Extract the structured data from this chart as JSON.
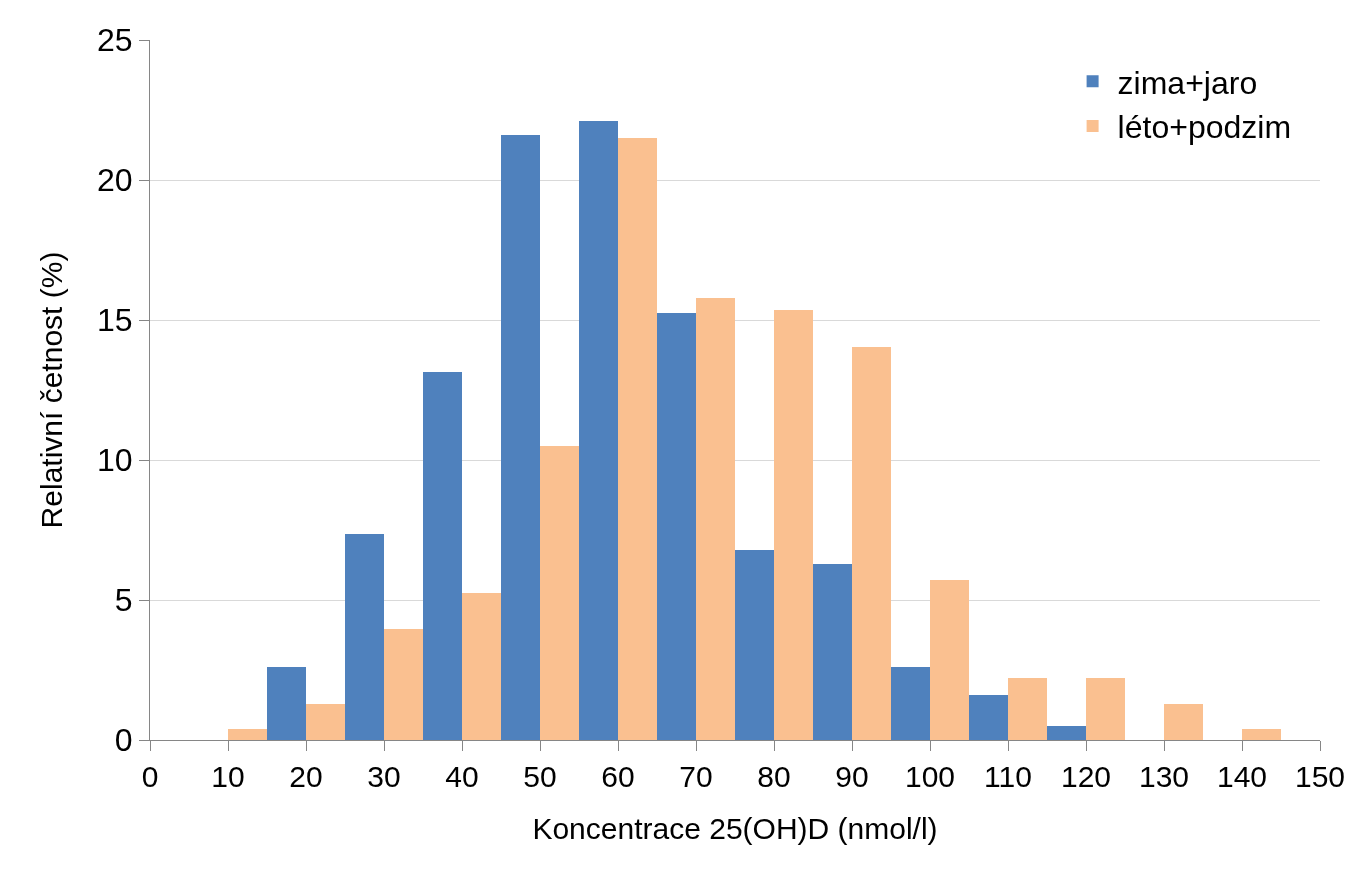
{
  "chart_data": {
    "type": "bar",
    "xlabel": "Koncentrace 25(OH)D (nmol/l)",
    "ylabel": "Relativní četnost (%)",
    "x": [
      10,
      20,
      30,
      40,
      50,
      60,
      70,
      80,
      90,
      100,
      110,
      120,
      130,
      140
    ],
    "series": [
      {
        "name": "zima+jaro",
        "color": "#4f81bd",
        "values": [
          0,
          2.6,
          7.35,
          13.15,
          21.6,
          22.1,
          15.25,
          6.8,
          6.3,
          2.6,
          1.6,
          0.5,
          0,
          0
        ]
      },
      {
        "name": "léto+podzim",
        "color": "#fac090",
        "values": [
          0.4,
          1.3,
          3.95,
          5.25,
          10.5,
          21.5,
          15.8,
          15.35,
          14.05,
          5.7,
          2.2,
          2.2,
          1.3,
          0.4
        ]
      }
    ],
    "xlim": [
      0,
      150
    ],
    "xticks": [
      0,
      10,
      20,
      30,
      40,
      50,
      60,
      70,
      80,
      90,
      100,
      110,
      120,
      130,
      140,
      150
    ],
    "ylim": [
      0,
      25
    ],
    "yticks": [
      0,
      5,
      10,
      15,
      20,
      25
    ],
    "grid": "y",
    "legend": "top right"
  }
}
